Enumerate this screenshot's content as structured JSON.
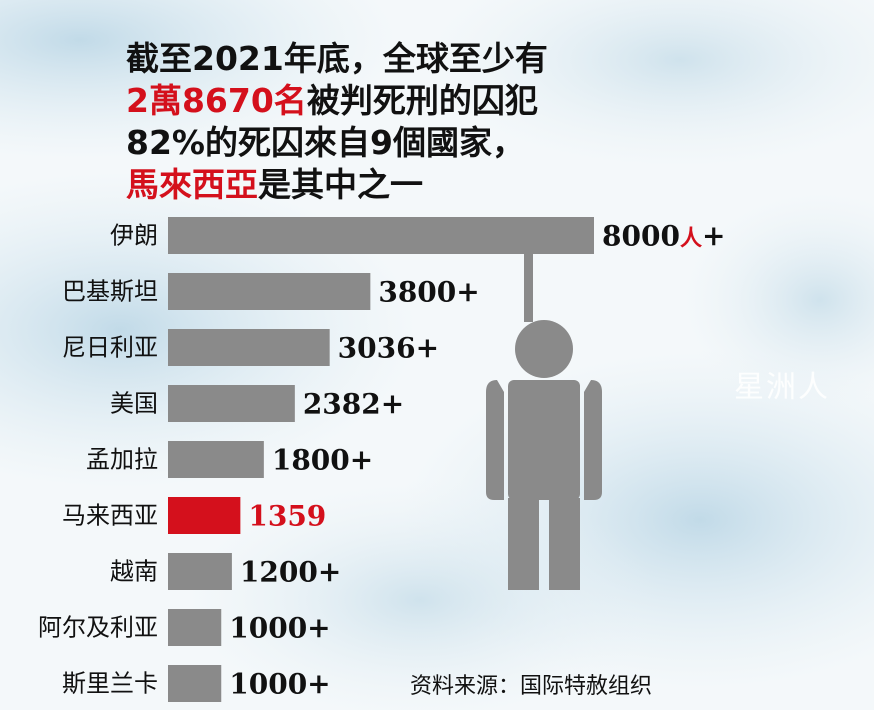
{
  "headline": {
    "line1": "截至2021年底，全球至少有",
    "line2_highlight": "2萬8670名",
    "line2_rest": "被判死刑的囚犯",
    "line3": "82%的死囚來自9個國家，",
    "line4_highlight": "馬來西亞",
    "line4_rest": "是其中之一"
  },
  "chart_data": {
    "type": "bar",
    "orientation": "horizontal",
    "categories": [
      "伊朗",
      "巴基斯坦",
      "尼日利亚",
      "美国",
      "孟加拉",
      "马来西亚",
      "越南",
      "阿尔及利亚",
      "斯里兰卡"
    ],
    "values": [
      8000,
      3800,
      3036,
      2382,
      1800,
      1359,
      1200,
      1000,
      1000
    ],
    "value_labels": [
      "8000",
      "3800+",
      "3036+",
      "2382+",
      "1800+",
      "1359",
      "1200+",
      "1000+",
      "1000+"
    ],
    "first_label_unit": "人",
    "first_label_suffix": "+",
    "highlight_index": 5,
    "colors": {
      "bar": "#8a8a8a",
      "highlight": "#d4101c"
    },
    "title": "",
    "xlabel": "",
    "ylabel": ""
  },
  "source": "资料来源：国际特赦组织",
  "watermark": "星洲人",
  "icons": [
    "noose-rope-icon",
    "person-silhouette-icon"
  ]
}
